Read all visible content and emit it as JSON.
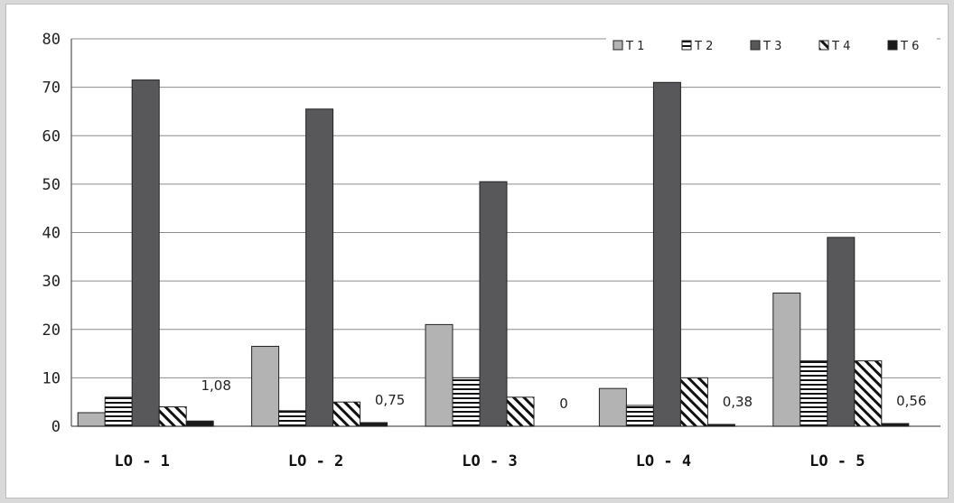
{
  "chart_data": {
    "type": "bar",
    "title": "",
    "xlabel": "",
    "ylabel": "",
    "ylim": [
      0,
      80
    ],
    "yticks": [
      0,
      10,
      20,
      30,
      40,
      50,
      60,
      70,
      80
    ],
    "grid": true,
    "legend_position": "top-right",
    "categories": [
      "LO - 1",
      "LO - 2",
      "LO - 3",
      "LO - 4",
      "LO - 5"
    ],
    "series": [
      {
        "name": "T 1",
        "values": [
          2.8,
          16.5,
          21,
          7.8,
          27.5
        ],
        "color": "#b3b3b3",
        "pattern": "solid"
      },
      {
        "name": "T 2",
        "values": [
          6,
          3.2,
          10,
          4.3,
          13.5
        ],
        "color": "#ffffff",
        "pattern": "horizontal"
      },
      {
        "name": "T 3",
        "values": [
          71.5,
          65.5,
          50.5,
          71,
          39
        ],
        "color": "#58585a",
        "pattern": "solid"
      },
      {
        "name": "T 4",
        "values": [
          4,
          5,
          6,
          10,
          13.5
        ],
        "color": "#ffffff",
        "pattern": "diagonal"
      },
      {
        "name": "T 6",
        "values": [
          1.08,
          0.75,
          0,
          0.38,
          0.56
        ],
        "color": "#1a1a1a",
        "pattern": "solid"
      }
    ],
    "data_labels": [
      "1,08",
      "0,75",
      "0",
      "0,38",
      "0,56"
    ]
  }
}
